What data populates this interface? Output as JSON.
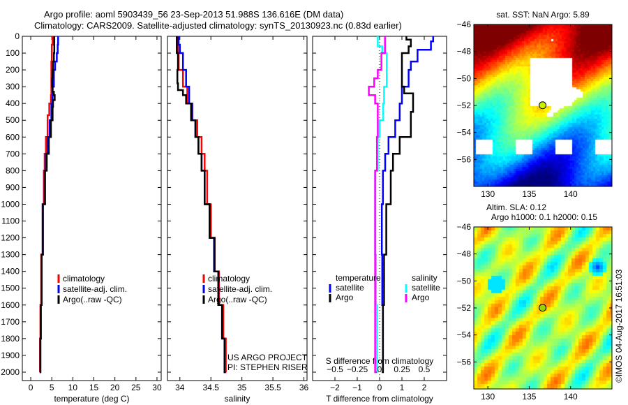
{
  "header": {
    "title": "Argo profile: aoml 5903439_56 23-Sep-2013 51.988S 136.616E (DM data)",
    "subtitle": "Climatology: CARS2009. Satellite-adjusted climatology: synTS_20130923.nc (0.83d earlier)"
  },
  "credits": {
    "project": "US ARGO PROJECT",
    "pi": "PI: STEPHEN RISER",
    "stamp": "©IMOS 04-Aug-2017 16:51:03"
  },
  "colors": {
    "climatology": "#ff0000",
    "satellite": "#0000ff",
    "argo": "#000000",
    "s_satellite": "#00ffff",
    "s_argo": "#ff00ff"
  },
  "chart_data": [
    {
      "type": "line",
      "id": "temperature",
      "xlabel": "temperature (deg C)",
      "ylabel": "",
      "xlim": [
        -2,
        31
      ],
      "ylim": [
        2050,
        0
      ],
      "xticks": [
        0,
        5,
        10,
        15,
        20,
        25,
        30
      ],
      "yticks": [
        0,
        100,
        200,
        300,
        400,
        500,
        600,
        700,
        800,
        900,
        1000,
        1100,
        1200,
        1300,
        1400,
        1500,
        1600,
        1700,
        1800,
        1900,
        2000
      ],
      "legend": {
        "placement": "bottom-center",
        "entries": [
          "climatology",
          "satellite-adj. clim.",
          "Argo(..raw -QC)"
        ]
      },
      "series": [
        {
          "name": "climatology",
          "color": "#ff0000",
          "depth": [
            0,
            50,
            150,
            350,
            400,
            470,
            600,
            700,
            800,
            1000,
            1300,
            1600,
            1800,
            2000
          ],
          "values": [
            5.2,
            5.0,
            4.9,
            4.8,
            4.4,
            4.0,
            3.6,
            3.3,
            3.1,
            2.8,
            2.5,
            2.3,
            2.2,
            2.1
          ]
        },
        {
          "name": "satellite-adj. clim.",
          "color": "#0000ff",
          "depth": [
            0,
            50,
            100,
            150,
            200,
            300,
            400,
            500,
            600,
            700,
            800,
            1000,
            1300,
            1600,
            1800,
            2000
          ],
          "values": [
            6.5,
            6.4,
            6.2,
            5.8,
            5.5,
            5.2,
            4.9,
            4.5,
            4.0,
            3.6,
            3.3,
            2.9,
            2.6,
            2.4,
            2.3,
            2.2
          ]
        },
        {
          "name": "Argo(..raw -QC)",
          "color": "#000000",
          "depth": [
            0,
            50,
            100,
            150,
            200,
            250,
            300,
            330,
            350,
            380,
            420,
            500,
            600,
            700,
            800,
            1000,
            1300,
            1600,
            1800,
            2000
          ],
          "values": [
            5.6,
            5.6,
            5.5,
            5.3,
            5.2,
            5.1,
            5.2,
            5.5,
            5.7,
            5.3,
            5.2,
            4.8,
            4.3,
            3.8,
            3.4,
            2.9,
            2.6,
            2.4,
            2.3,
            2.2
          ]
        }
      ]
    },
    {
      "type": "line",
      "id": "salinity",
      "xlabel": "salinity",
      "ylabel": "",
      "xlim": [
        33.8,
        36.05
      ],
      "ylim": [
        2050,
        0
      ],
      "xticks": [
        34,
        34.5,
        35,
        35.5,
        36
      ],
      "legend": {
        "placement": "bottom-center",
        "entries": [
          "climatology",
          "satellite-adj. clim.",
          "Argo(..raw -QC)"
        ]
      },
      "series": [
        {
          "name": "climatology",
          "color": "#ff0000",
          "depth": [
            0,
            100,
            200,
            300,
            400,
            500,
            600,
            700,
            800,
            1000,
            1200,
            1400,
            1600,
            1800,
            2000
          ],
          "values": [
            33.97,
            33.98,
            34.05,
            34.12,
            34.2,
            34.28,
            34.35,
            34.4,
            34.44,
            34.5,
            34.56,
            34.63,
            34.7,
            34.74,
            34.75
          ]
        },
        {
          "name": "satellite-adj. clim.",
          "color": "#0000ff",
          "depth": [
            0,
            50,
            100,
            200,
            300,
            400,
            500,
            600,
            700,
            800,
            1000,
            1200,
            1400,
            1600,
            1800,
            2000
          ],
          "values": [
            33.98,
            34.0,
            34.05,
            34.1,
            34.15,
            34.2,
            34.25,
            34.3,
            34.35,
            34.4,
            34.48,
            34.55,
            34.62,
            34.68,
            34.72,
            34.74
          ]
        },
        {
          "name": "Argo(..raw -QC)",
          "color": "#000000",
          "depth": [
            0,
            50,
            100,
            200,
            280,
            320,
            350,
            400,
            500,
            600,
            700,
            800,
            1000,
            1200,
            1400,
            1600,
            1800,
            2000
          ],
          "values": [
            33.95,
            33.95,
            33.97,
            33.96,
            33.97,
            34.05,
            34.1,
            34.18,
            34.25,
            34.3,
            34.35,
            34.4,
            34.48,
            34.56,
            34.62,
            34.68,
            34.72,
            34.73
          ]
        }
      ]
    },
    {
      "type": "line",
      "id": "difference",
      "xlabel": "T difference from climatology",
      "x2label": "S difference from climatology",
      "ylabel": "",
      "xlim": [
        -3,
        3
      ],
      "x2lim": [
        -0.75,
        0.75
      ],
      "ylim": [
        2050,
        0
      ],
      "xticks": [
        -2,
        -1,
        0,
        1,
        2
      ],
      "x2ticks": [
        -0.5,
        -0.25,
        0,
        0.25,
        0.5
      ],
      "x2ticklabels": [
        "-0.5",
        "-0.25",
        "0",
        "0.25",
        "0.5"
      ],
      "legend": {
        "placement": "bottom",
        "groups": [
          {
            "title": "temperature",
            "entries": [
              "satellite",
              "Argo"
            ]
          },
          {
            "title": "salinity",
            "entries": [
              "satellite",
              "Argo"
            ]
          }
        ]
      },
      "series": [
        {
          "name": "T satellite",
          "axis": "T",
          "color": "#0000ff",
          "depth": [
            0,
            30,
            80,
            150,
            200,
            300,
            400,
            500,
            600,
            700,
            800,
            1000,
            1300,
            1600,
            2000
          ],
          "values": [
            2.4,
            2.3,
            1.7,
            1.4,
            1.3,
            1.0,
            0.9,
            0.7,
            0.4,
            0.25,
            0.15,
            0.1,
            0.12,
            0.15,
            0.15
          ]
        },
        {
          "name": "T Argo",
          "axis": "T",
          "color": "#000000",
          "depth": [
            0,
            20,
            60,
            100,
            200,
            300,
            340,
            380,
            450,
            600,
            700,
            800,
            1000,
            1300,
            1600,
            2000
          ],
          "values": [
            1.2,
            1.4,
            1.3,
            1.0,
            1.0,
            1.1,
            1.5,
            1.5,
            1.4,
            0.9,
            0.6,
            0.5,
            0.3,
            0.2,
            0.15,
            0.1
          ]
        },
        {
          "name": "S satellite",
          "axis": "S",
          "color": "#00ffff",
          "depth": [
            0,
            60,
            100,
            200,
            300,
            400,
            500,
            600,
            800,
            1000,
            1300,
            1600,
            2000
          ],
          "values": [
            -0.02,
            0.03,
            0.08,
            0.08,
            0.05,
            0.04,
            0.0,
            -0.02,
            -0.05,
            -0.05,
            -0.04,
            -0.03,
            -0.02
          ]
        },
        {
          "name": "S Argo",
          "axis": "S",
          "color": "#ff00ff",
          "depth": [
            0,
            100,
            200,
            250,
            300,
            350,
            400,
            500,
            600,
            800,
            1000,
            1300,
            1600,
            2000
          ],
          "values": [
            0.06,
            0.02,
            -0.02,
            -0.06,
            -0.12,
            -0.05,
            -0.02,
            -0.02,
            -0.03,
            -0.05,
            -0.05,
            -0.05,
            -0.05,
            -0.03
          ]
        }
      ]
    },
    {
      "type": "heatmap",
      "id": "sst-map",
      "title": "sat. SST: NaN Argo: 5.89",
      "xlim": [
        128.3,
        145
      ],
      "ylim": [
        -58,
        -46
      ],
      "xticks": [
        130,
        135,
        140
      ],
      "yticks": [
        -46,
        -48,
        -50,
        -52,
        -54,
        -56
      ],
      "yticklabels": [
        "-46",
        "-48",
        "-50",
        "-52",
        "-54",
        "-56"
      ],
      "marker": {
        "lon": 136.616,
        "lat": -51.988
      }
    },
    {
      "type": "heatmap",
      "id": "sla-map",
      "title": "Altim. SLA: 0.12",
      "subtitle": "Argo h1000: 0.1 h2000: 0.15",
      "xlim": [
        128.3,
        145
      ],
      "ylim": [
        -58,
        -46
      ],
      "xticks": [
        130,
        135,
        140
      ],
      "yticks": [
        -46,
        -48,
        -50,
        -52,
        -54,
        -56
      ],
      "yticklabels": [
        "-46",
        "-48",
        "-50",
        "-52",
        "-54",
        "-56"
      ],
      "marker": {
        "lon": 136.616,
        "lat": -51.988
      }
    }
  ]
}
